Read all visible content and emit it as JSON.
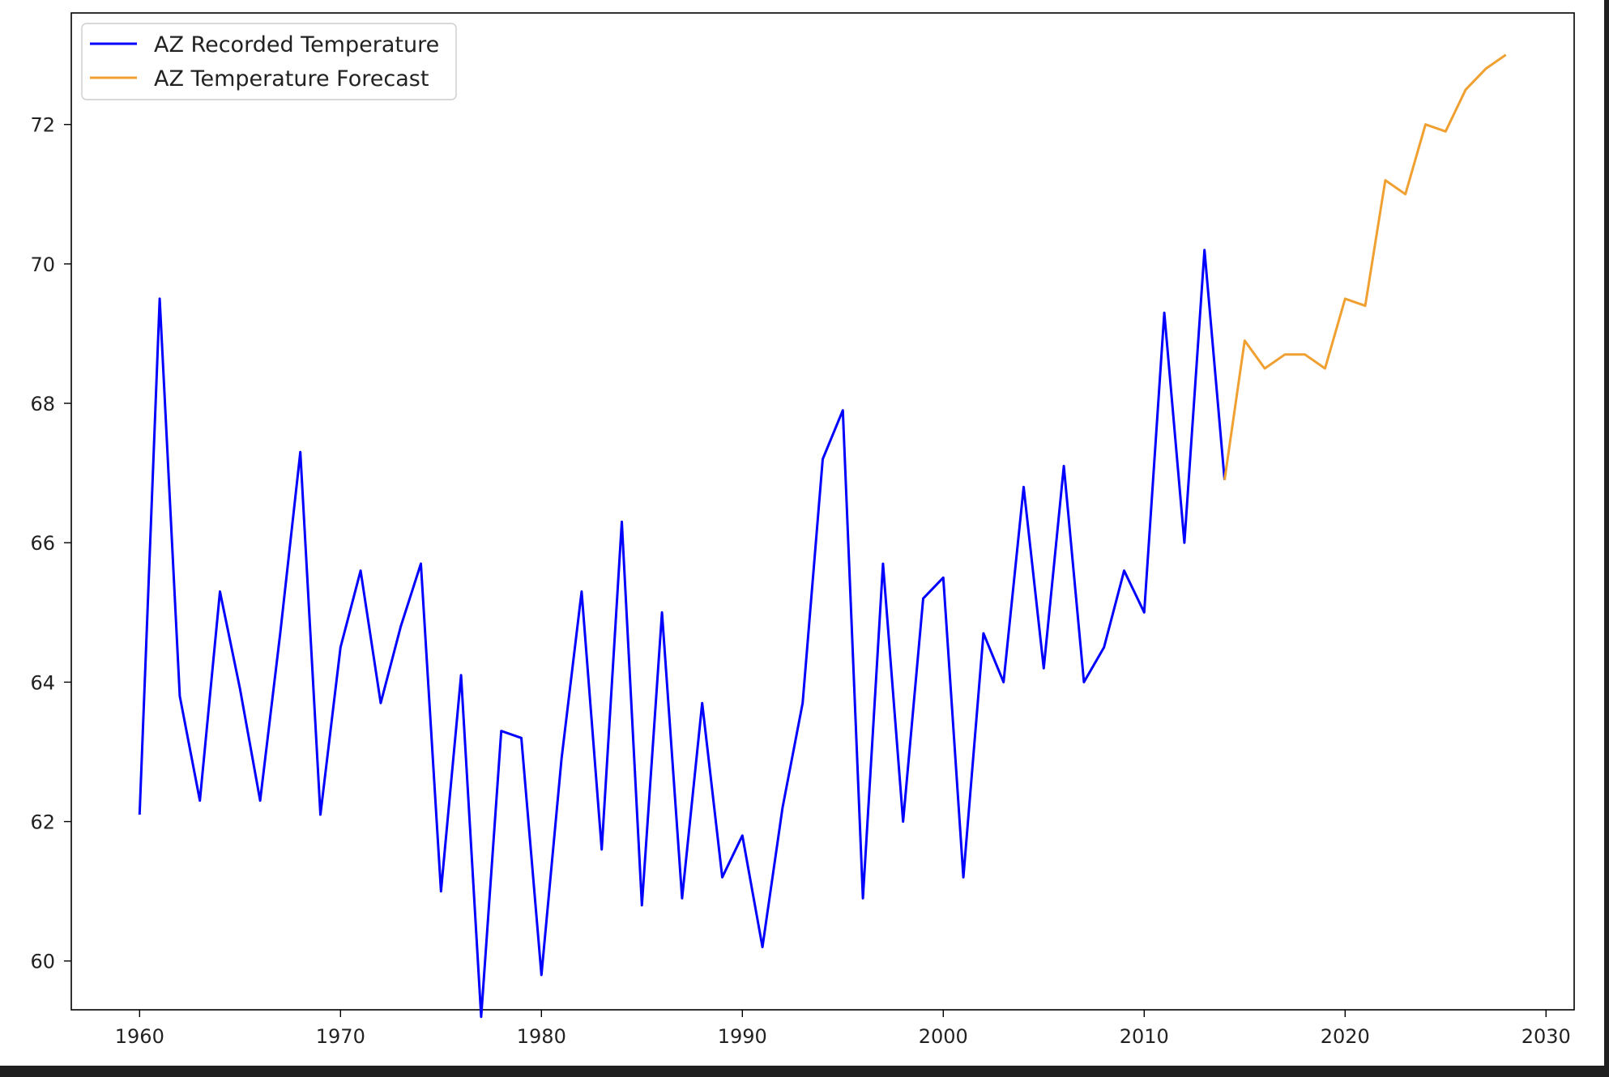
{
  "chart_data": {
    "type": "line",
    "title": "",
    "xlabel": "",
    "ylabel": "",
    "xlim": [
      1956.6,
      2031.4
    ],
    "ylim": [
      59.3,
      73.6
    ],
    "x_ticks": [
      1960,
      1970,
      1980,
      1990,
      2000,
      2010,
      2020,
      2030
    ],
    "y_ticks": [
      60,
      62,
      64,
      66,
      68,
      70,
      72
    ],
    "grid": false,
    "legend_position": "top-left",
    "series": [
      {
        "name": "AZ Recorded Temperature",
        "color": "#0000ff",
        "x": [
          1960,
          1961,
          1962,
          1963,
          1964,
          1965,
          1966,
          1967,
          1968,
          1969,
          1970,
          1971,
          1972,
          1973,
          1974,
          1975,
          1976,
          1977,
          1978,
          1979,
          1980,
          1981,
          1982,
          1983,
          1984,
          1985,
          1986,
          1987,
          1988,
          1989,
          1990,
          1991,
          1992,
          1993,
          1994,
          1995,
          1996,
          1997,
          1998,
          1999,
          2000,
          2001,
          2002,
          2003,
          2004,
          2005,
          2006,
          2007,
          2008,
          2009,
          2010,
          2011,
          2012,
          2013,
          2014
        ],
        "y": [
          62.1,
          69.5,
          63.8,
          62.3,
          65.3,
          63.9,
          62.3,
          64.7,
          67.3,
          62.1,
          64.5,
          65.6,
          63.7,
          64.8,
          65.7,
          61.0,
          64.1,
          59.2,
          63.3,
          63.2,
          59.8,
          62.9,
          65.3,
          61.6,
          66.3,
          60.8,
          65.0,
          60.9,
          63.7,
          61.2,
          61.8,
          60.2,
          62.2,
          63.7,
          67.2,
          67.9,
          60.9,
          65.7,
          62.0,
          65.2,
          65.5,
          61.2,
          64.7,
          64.0,
          66.8,
          64.2,
          67.1,
          64.0,
          64.5,
          65.6,
          65.0,
          69.3,
          66.0,
          70.2,
          66.9
        ]
      },
      {
        "name": "AZ Temperature Forecast",
        "color": "#f0a030",
        "x": [
          2014,
          2015,
          2016,
          2017,
          2018,
          2019,
          2020,
          2021,
          2022,
          2023,
          2024,
          2025,
          2026,
          2027,
          2028
        ],
        "y": [
          66.9,
          68.9,
          68.5,
          68.7,
          68.7,
          68.5,
          69.5,
          69.4,
          71.2,
          71.0,
          72.0,
          71.9,
          72.5,
          72.8,
          73.0
        ]
      }
    ]
  }
}
